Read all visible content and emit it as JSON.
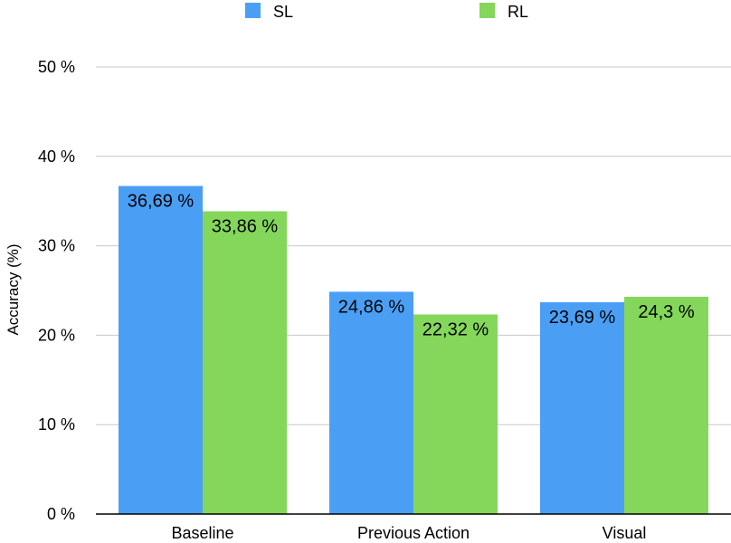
{
  "chart_data": {
    "type": "bar",
    "title": "",
    "xlabel": "",
    "ylabel": "Accuracy (%)",
    "categories": [
      "Baseline",
      "Previous Action",
      "Visual"
    ],
    "series": [
      {
        "name": "SL",
        "color": "#4a9ff5",
        "values": [
          36.69,
          24.86,
          23.69
        ],
        "labels": [
          "36,69 %",
          "24,86 %",
          "23,69 %"
        ]
      },
      {
        "name": "RL",
        "color": "#84d75a",
        "values": [
          33.86,
          22.32,
          24.3
        ],
        "labels": [
          "33,86 %",
          "22,32 %",
          "24,3 %"
        ]
      }
    ],
    "ylim": [
      0,
      50
    ],
    "yticks": [
      0,
      10,
      20,
      30,
      40,
      50
    ],
    "ytick_labels": [
      "0 %",
      "10 %",
      "20 %",
      "30 %",
      "40 %",
      "50 %"
    ],
    "grid": true,
    "legend_position": "top-center",
    "gridline_color": "#c8c8c8",
    "axis_color": "#000000"
  }
}
